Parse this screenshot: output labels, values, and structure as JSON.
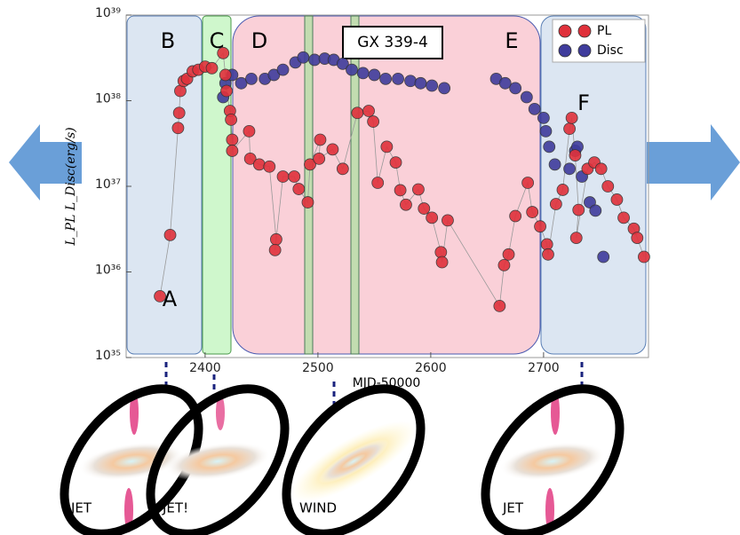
{
  "chart_data": {
    "type": "scatter",
    "title": "GX 339-4",
    "x_label": "MJD-50000",
    "y_label": "L_PL L_Disc(erg/s)",
    "log_y": true,
    "legend": "upper right",
    "xlim": [
      2330,
      2793
    ],
    "ylim": [
      1e+35,
      1e+39
    ],
    "xticks": [
      2400,
      2500,
      2600,
      2700
    ],
    "yticks": [
      {
        "value": 1e+35,
        "label": "10³⁵"
      },
      {
        "value": 1e+36,
        "label": "10³⁶"
      },
      {
        "value": 1e+37,
        "label": "10³⁷"
      },
      {
        "value": 1e+38,
        "label": "10³⁸"
      },
      {
        "value": 1e+39,
        "label": "10³⁹"
      }
    ],
    "annotations": [
      "A",
      "B",
      "C",
      "D",
      "E",
      "F"
    ],
    "series": [
      {
        "name": "PL",
        "color": "#e0313b",
        "x": [
          2360,
          2369,
          2376,
          2377,
          2378,
          2381,
          2384,
          2389,
          2394,
          2400,
          2406,
          2416,
          2418,
          2419,
          2422,
          2423,
          2424,
          2424,
          2439,
          2440,
          2448,
          2457,
          2463,
          2462,
          2469,
          2479,
          2483,
          2491,
          2493,
          2502,
          2501,
          2513,
          2522,
          2535,
          2545,
          2549,
          2553,
          2561,
          2569,
          2573,
          2578,
          2589,
          2594,
          2601,
          2609,
          2610,
          2615,
          2661,
          2665,
          2669,
          2675,
          2686,
          2690,
          2697,
          2703,
          2704,
          2711,
          2717,
          2723,
          2725,
          2728,
          2731,
          2729,
          2739,
          2745,
          2751,
          2757,
          2765,
          2771,
          2780,
          2783,
          2789
        ],
        "values": [
          5.2e+35,
          2.7e+36,
          4.8e+37,
          7.2e+37,
          1.3e+38,
          1.7e+38,
          1.8e+38,
          2.2e+38,
          2.3e+38,
          2.5e+38,
          2.4e+38,
          3.6e+38,
          2e+38,
          1.3e+38,
          7.6e+37,
          6e+37,
          3.5e+37,
          2.6e+37,
          4.4e+37,
          2.1e+37,
          1.8e+37,
          1.7e+37,
          2.4e+36,
          1.8e+36,
          1.3e+37,
          1.3e+37,
          9.3e+36,
          6.5e+36,
          1.8e+37,
          3.5e+37,
          2.1e+37,
          2.7e+37,
          1.6e+37,
          7.2e+37,
          7.6e+37,
          5.7e+37,
          1.1e+37,
          2.9e+37,
          1.9e+37,
          9e+36,
          6.1e+36,
          9.2e+36,
          5.5e+36,
          4.3e+36,
          1.7e+36,
          1.3e+36,
          4e+36,
          4e+35,
          1.2e+36,
          1.6e+36,
          4.5e+36,
          1.1e+37,
          5e+36,
          3.4e+36,
          2.1e+36,
          1.6e+36,
          6.2e+36,
          9.1e+36,
          4.7e+37,
          6.3e+37,
          2.3e+37,
          5.3e+36,
          2.5e+36,
          1.6e+37,
          1.9e+37,
          1.6e+37,
          1e+37,
          7e+36,
          4.3e+36,
          3.2e+36,
          2.5e+36,
          1.5e+36
        ]
      },
      {
        "name": "Disc",
        "color": "#3f3c9c",
        "x": [
          2416,
          2418,
          2424,
          2432,
          2441,
          2453,
          2461,
          2469,
          2480,
          2487,
          2497,
          2506,
          2514,
          2522,
          2530,
          2540,
          2550,
          2560,
          2571,
          2582,
          2591,
          2601,
          2612,
          2658,
          2666,
          2675,
          2685,
          2692,
          2700,
          2702,
          2705,
          2710,
          2723,
          2728,
          2730,
          2734,
          2741,
          2746,
          2753
        ],
        "values": [
          1.1e+38,
          1.6e+38,
          2e+38,
          1.6e+38,
          1.8e+38,
          1.8e+38,
          2e+38,
          2.3e+38,
          2.8e+38,
          3.2e+38,
          3e+38,
          3.1e+38,
          3e+38,
          2.7e+38,
          2.3e+38,
          2.1e+38,
          2e+38,
          1.8e+38,
          1.8e+38,
          1.7e+38,
          1.6e+38,
          1.5e+38,
          1.4e+38,
          1.8e+38,
          1.6e+38,
          1.4e+38,
          1.1e+38,
          8e+37,
          6.3e+37,
          4.4e+37,
          2.9e+37,
          1.8e+37,
          1.6e+37,
          2.6e+37,
          2.9e+37,
          1.3e+37,
          6.5e+36,
          5.2e+36,
          1.5e+36
        ]
      }
    ]
  },
  "diagrams": [
    "JET",
    "JET!",
    "WIND",
    "JET"
  ]
}
